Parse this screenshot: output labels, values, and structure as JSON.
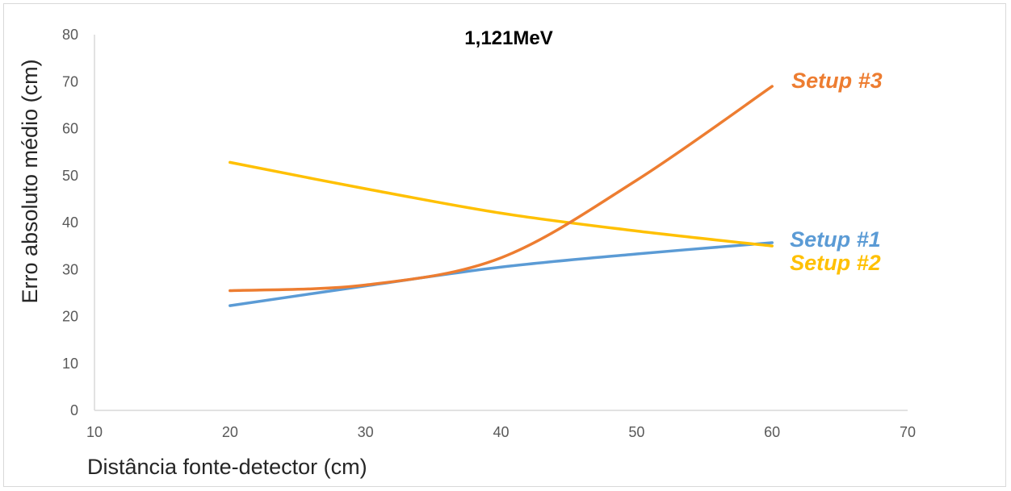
{
  "chart_data": {
    "type": "line",
    "title": "1,121MeV",
    "xlabel": "Distância fonte-detector (cm)",
    "ylabel": "Erro absoluto médio (cm)",
    "xlim": [
      10,
      70
    ],
    "ylim": [
      0,
      80
    ],
    "x_ticks": [
      "10",
      "20",
      "30",
      "40",
      "50",
      "60",
      "70"
    ],
    "y_ticks": [
      "0",
      "10",
      "20",
      "30",
      "40",
      "50",
      "60",
      "70",
      "80"
    ],
    "grid": false,
    "legend": "inline labels at line ends",
    "series": [
      {
        "name": "Setup #1",
        "color": "#5b9bd5",
        "x": [
          20,
          30,
          40,
          50,
          60
        ],
        "y": [
          22.3,
          26.5,
          30.5,
          33.3,
          35.7
        ]
      },
      {
        "name": "Setup #2",
        "color": "#ffc000",
        "x": [
          20,
          30,
          40,
          50,
          60
        ],
        "y": [
          52.8,
          47.2,
          42.0,
          38.2,
          35.0
        ]
      },
      {
        "name": "Setup #3",
        "color": "#ed7d31",
        "x": [
          20,
          30,
          40,
          50,
          60
        ],
        "y": [
          25.5,
          26.7,
          32.5,
          49.0,
          69.0
        ]
      }
    ]
  }
}
